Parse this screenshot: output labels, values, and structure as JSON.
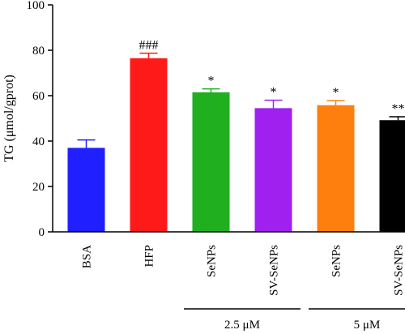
{
  "chart_data": {
    "type": "bar",
    "ylabel": "TG (μmol/gprot)",
    "ylim": [
      0,
      100
    ],
    "yticks": [
      0,
      20,
      40,
      60,
      80,
      100
    ],
    "categories": [
      "BSA",
      "HFP",
      "SeNPs",
      "SV-SeNPs",
      "SeNPs",
      "SV-SeNPs"
    ],
    "values": [
      37.0,
      76.5,
      61.5,
      54.5,
      55.8,
      49.2
    ],
    "errors": [
      3.5,
      2.2,
      1.5,
      3.5,
      2.0,
      1.5
    ],
    "significance": [
      "",
      "###",
      "*",
      "*",
      "*",
      "**"
    ],
    "colors": [
      "#1f1fff",
      "#ff1a1a",
      "#1faf1f",
      "#a020f0",
      "#ff7f0e",
      "#000000"
    ],
    "groups": [
      {
        "label": "2.5 μM",
        "from": 2,
        "to": 3
      },
      {
        "label": "5 μM",
        "from": 4,
        "to": 5
      }
    ]
  }
}
